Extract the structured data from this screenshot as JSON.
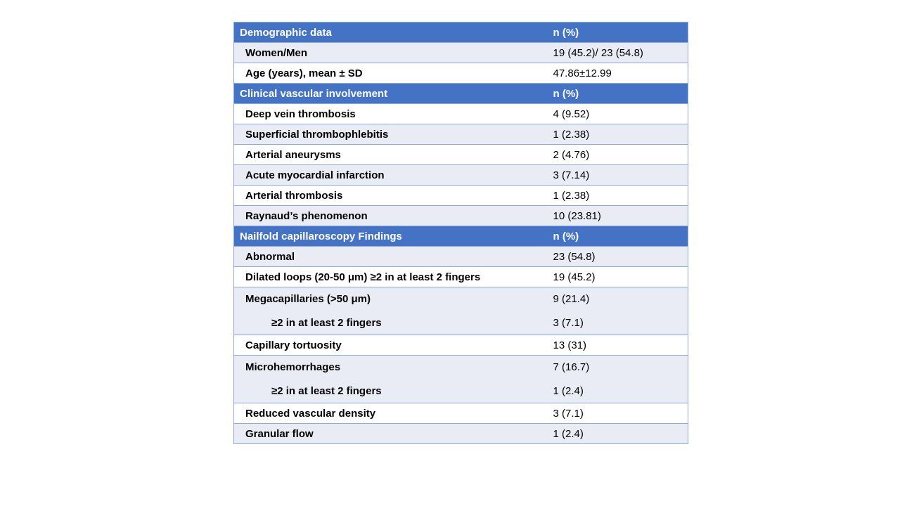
{
  "page": {
    "background_color": "#ffffff"
  },
  "table": {
    "colors": {
      "section_header_bg": "#4472C4",
      "section_header_text": "#ffffff",
      "banded_row_bg": "#E9EBF5",
      "plain_row_bg": "#ffffff",
      "border": "#8EAADB",
      "body_text": "#000000"
    },
    "sections": [
      {
        "header": {
          "label": "Demographic data",
          "value": "n (%)"
        },
        "rows": [
          {
            "label": "Women/Men",
            "value": "19 (45.2)/ 23 (54.8)"
          },
          {
            "label": "Age (years), mean ± SD",
            "value": "47.86±12.99"
          }
        ]
      },
      {
        "header": {
          "label": "Clinical vascular involvement",
          "value": "n (%)"
        },
        "rows": [
          {
            "label": "Deep vein thrombosis",
            "value": "4 (9.52)"
          },
          {
            "label": "Superficial thrombophlebitis",
            "value": "1 (2.38)"
          },
          {
            "label": "Arterial aneurysms",
            "value": "2 (4.76)"
          },
          {
            "label": "Acute myocardial infarction",
            "value": "3 (7.14)"
          },
          {
            "label": "Arterial thrombosis",
            "value": "1 (2.38)"
          },
          {
            "label": "Raynaud’s phenomenon",
            "value": "10 (23.81)"
          }
        ]
      },
      {
        "header": {
          "label": "Nailfold capillaroscopy Findings",
          "value": "n (%)"
        },
        "rows": [
          {
            "label": "Abnormal",
            "value": "23 (54.8)"
          },
          {
            "label": "Dilated loops (20-50 μm) ≥2 in at least 2 fingers",
            "value": "19 (45.2)"
          },
          {
            "label": "Megacapillaries (>50 μm)",
            "value": "9 (21.4)"
          },
          {
            "label": "≥2 in at least 2 fingers",
            "value": "3 (7.1)",
            "indent": 2
          },
          {
            "label": "Capillary tortuosity",
            "value": "13 (31)"
          },
          {
            "label": "Microhemorrhages",
            "value": "7 (16.7)"
          },
          {
            "label": "≥2 in at least 2 fingers",
            "value": "1 (2.4)",
            "indent": 2
          },
          {
            "label": "Reduced vascular density",
            "value": "3 (7.1)"
          },
          {
            "label": "Granular flow",
            "value": "1 (2.4)"
          }
        ]
      }
    ]
  }
}
